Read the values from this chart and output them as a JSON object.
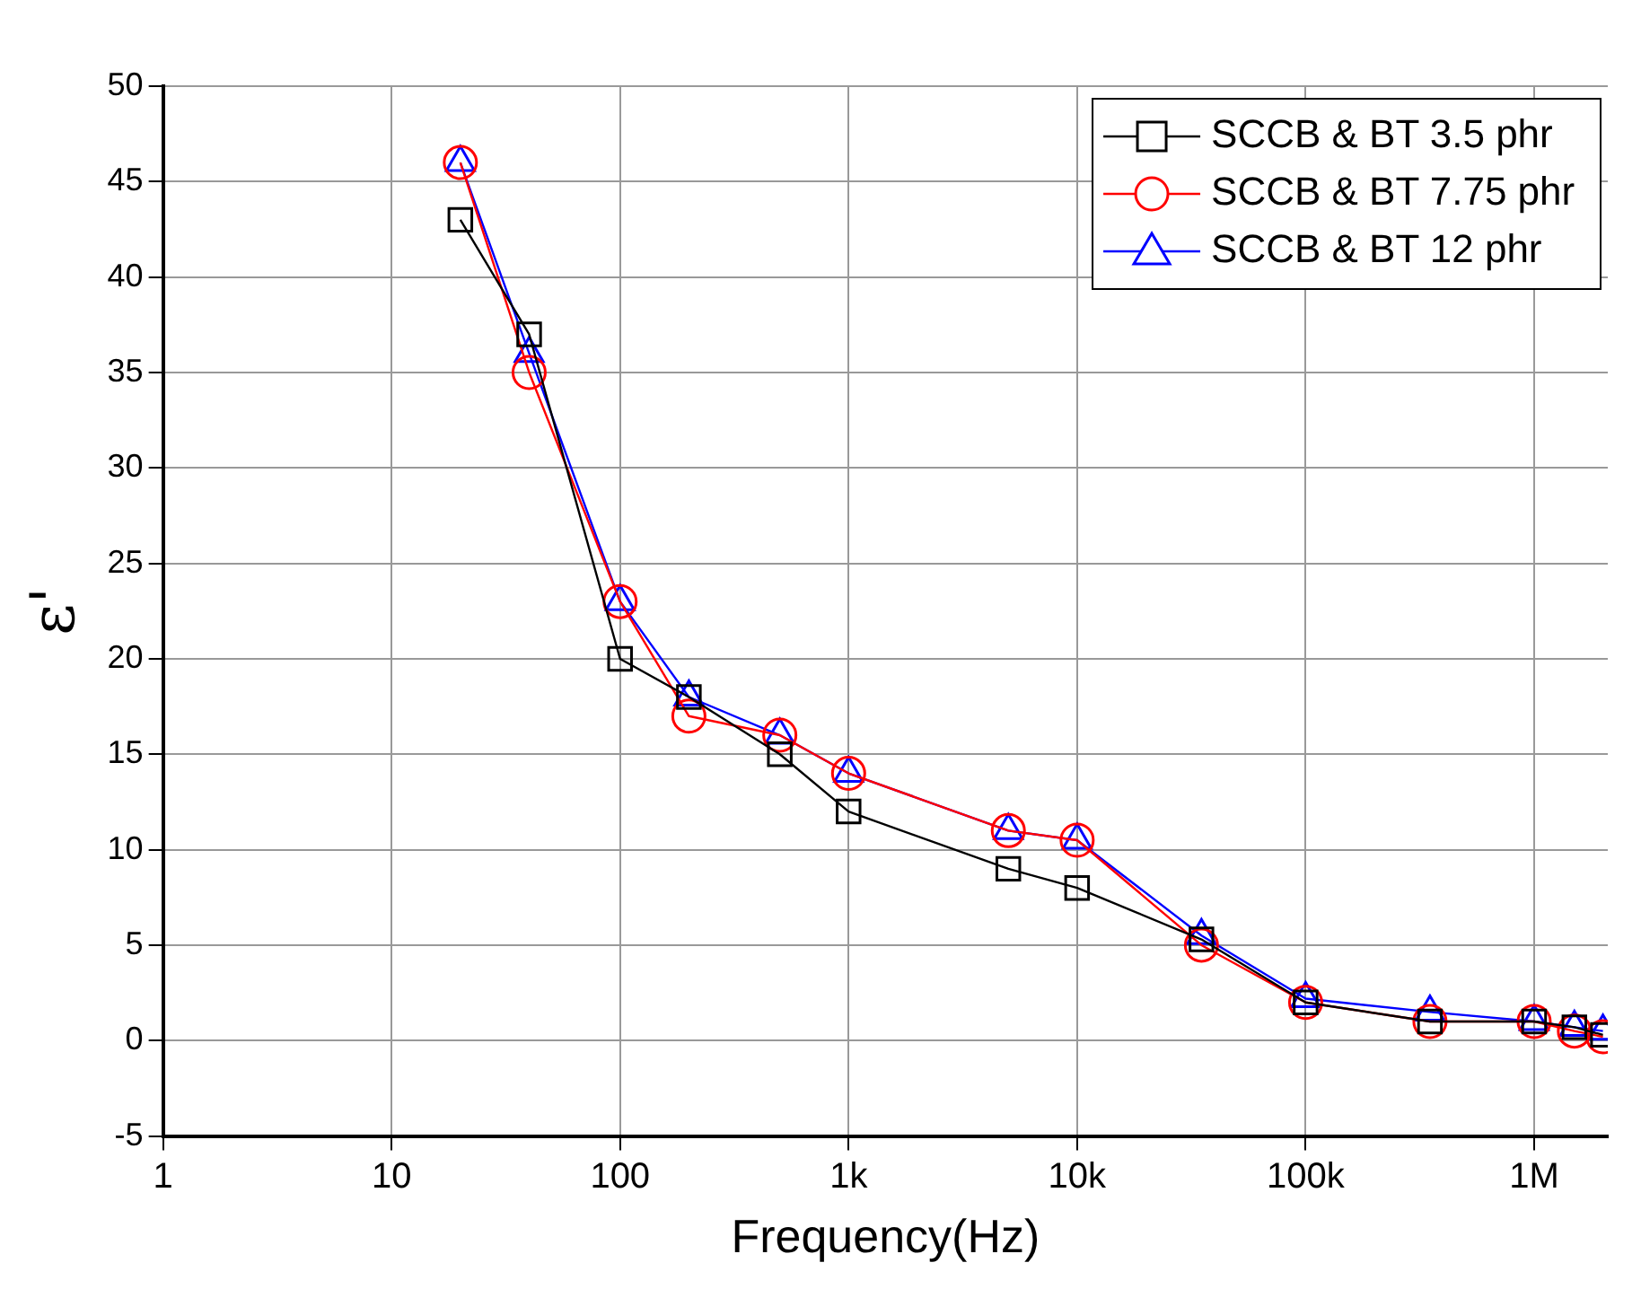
{
  "chart_data": {
    "type": "line",
    "xlabel": "Frequency(Hz)",
    "ylabel": "ε'",
    "x": [
      20,
      40,
      100,
      200,
      500,
      1000,
      5000,
      10000,
      35000,
      100000,
      350000,
      1000000,
      1500000,
      2000000
    ],
    "series": [
      {
        "name": "SCCB & BT 3.5 phr",
        "color": "#000000",
        "marker": "square",
        "values": [
          43,
          37,
          20,
          18,
          15,
          12,
          9,
          8,
          5.3,
          2,
          1,
          1,
          0.7,
          0.3
        ]
      },
      {
        "name": "SCCB & BT 7.75 phr",
        "color": "#ff0000",
        "marker": "circle",
        "values": [
          46,
          35,
          23,
          17,
          16,
          14,
          11,
          10.5,
          5,
          2,
          1,
          1,
          0.5,
          0.2
        ]
      },
      {
        "name": "SCCB & BT 12 phr",
        "color": "#0000ff",
        "marker": "triangle",
        "values": [
          46,
          36,
          23,
          18,
          16,
          14,
          11,
          10.5,
          5.5,
          2.2,
          1.5,
          1,
          0.7,
          0.5
        ]
      }
    ],
    "log": "x",
    "xlim": [
      1,
      2100000
    ],
    "xticks": [
      {
        "value": 1,
        "label": "1"
      },
      {
        "value": 10,
        "label": "10"
      },
      {
        "value": 100,
        "label": "100"
      },
      {
        "value": 1000,
        "label": "1k"
      },
      {
        "value": 10000,
        "label": "10k"
      },
      {
        "value": 100000,
        "label": "100k"
      },
      {
        "value": 1000000,
        "label": "1M"
      }
    ],
    "ylim": [
      -5,
      50
    ],
    "yticks": [
      -5,
      0,
      5,
      10,
      15,
      20,
      25,
      30,
      35,
      40,
      45,
      50
    ],
    "grid": true,
    "legend": "top right",
    "line_style": "solid"
  }
}
